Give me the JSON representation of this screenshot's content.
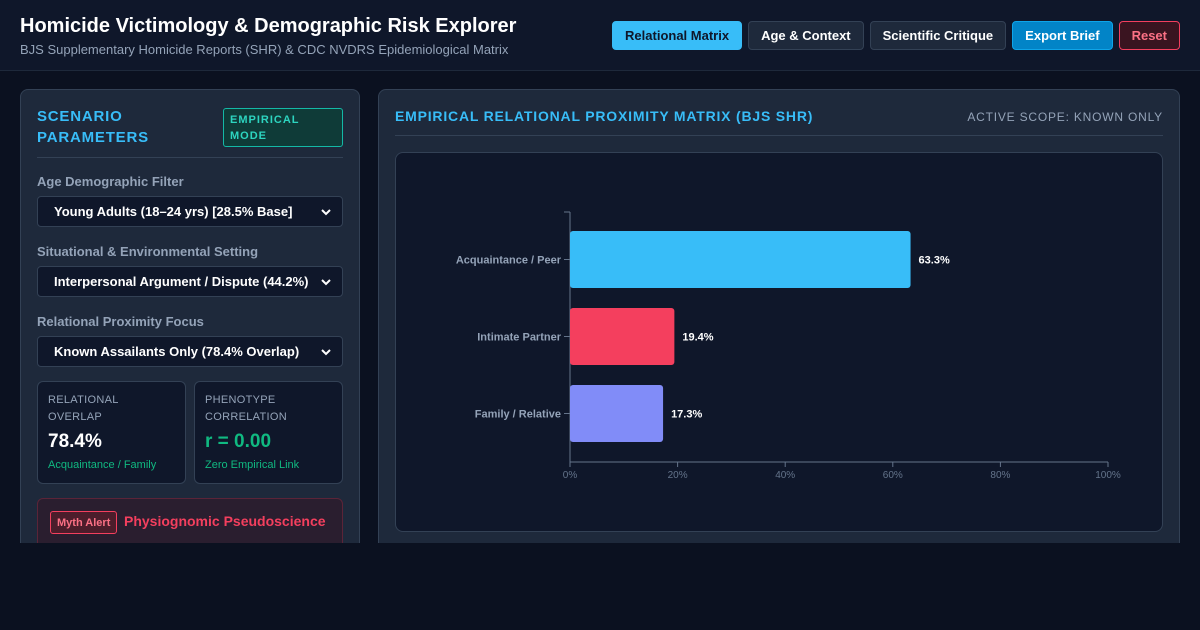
{
  "header": {
    "title": "Homicide Victimology & Demographic Risk Explorer",
    "subtitle": "BJS Supplementary Homicide Reports (SHR) & CDC NVDRS Epidemiological Matrix",
    "nav": {
      "relational": "Relational Matrix",
      "age": "Age & Context",
      "critique": "Scientific Critique",
      "export": "Export Brief",
      "reset": "Reset"
    },
    "active_tab": "Relational Matrix"
  },
  "left_panel": {
    "title": "Scenario Parameters",
    "mode_badge": "Empirical Mode",
    "age_filter": {
      "label": "Age Demographic Filter",
      "value": "Young Adults (18–24 yrs) [28.5% Base]"
    },
    "setting": {
      "label": "Situational & Environmental Setting",
      "value": "Interpersonal Argument / Dispute (44.2%)"
    },
    "proximity": {
      "label": "Relational Proximity Focus",
      "value": "Known Assailants Only (78.4% Overlap)"
    },
    "stat_overlap": {
      "label": "Relational Overlap",
      "value": "78.4%",
      "note": "Acquaintance / Family"
    },
    "stat_phenotype": {
      "label": "Phenotype Correlation",
      "value": "r = 0.00",
      "note": "Zero Empirical Link"
    },
    "myth": {
      "badge": "Myth Alert",
      "title": "Physiognomic Pseudoscience"
    }
  },
  "right_panel": {
    "title": "Empirical Relational Proximity Matrix (BJS SHR)",
    "scope": "Active Scope: Known Only"
  },
  "colors": {
    "accent": "#38bdf8",
    "acquaintance": "#38bdf8",
    "intimate": "#f43f5e",
    "family": "#818cf8",
    "positive": "#10b981"
  },
  "chart_data": {
    "type": "bar",
    "orientation": "horizontal",
    "categories": [
      "Acquaintance / Peer",
      "Intimate Partner",
      "Family / Relative"
    ],
    "values": [
      63.3,
      19.4,
      17.3
    ],
    "value_labels": [
      "63.3%",
      "19.4%",
      "17.3%"
    ],
    "bar_colors": [
      "#38bdf8",
      "#f43f5e",
      "#818cf8"
    ],
    "xlim": [
      0,
      100
    ],
    "xticks": [
      0,
      20,
      40,
      60,
      80,
      100
    ],
    "xtick_labels": [
      "0%",
      "20%",
      "40%",
      "60%",
      "80%",
      "100%"
    ],
    "grid": false
  }
}
